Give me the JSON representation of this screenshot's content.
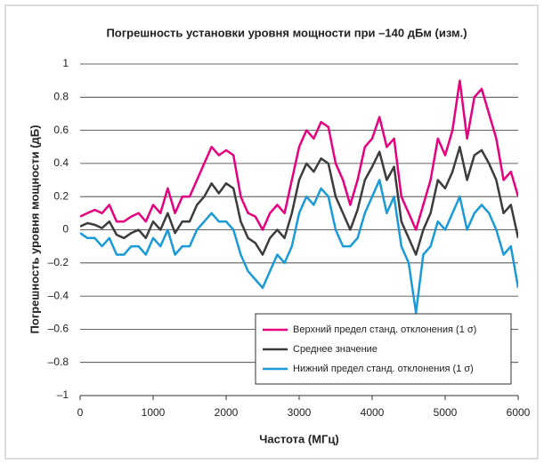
{
  "chart_data": {
    "type": "line",
    "title": "Погрешность установки уровня мощности при –140 дБм (изм.)",
    "x_label": "Частота (МГц)",
    "y_label": "Погрешность уровня мощности (дБ)",
    "x": [
      0,
      100,
      200,
      300,
      400,
      500,
      600,
      700,
      800,
      900,
      1000,
      1100,
      1200,
      1300,
      1400,
      1500,
      1600,
      1700,
      1800,
      1900,
      2000,
      2100,
      2200,
      2300,
      2400,
      2500,
      2600,
      2700,
      2800,
      2900,
      3000,
      3100,
      3200,
      3300,
      3400,
      3500,
      3600,
      3700,
      3800,
      3900,
      4000,
      4100,
      4200,
      4300,
      4400,
      4500,
      4600,
      4700,
      4800,
      4900,
      5000,
      5100,
      5200,
      5300,
      5400,
      5500,
      5600,
      5700,
      5800,
      5900,
      6000
    ],
    "series": [
      {
        "name": "Верхний предел станд. отклонения (1 σ)",
        "color": "#e6007e",
        "values": [
          0.08,
          0.1,
          0.12,
          0.1,
          0.15,
          0.05,
          0.05,
          0.08,
          0.1,
          0.05,
          0.15,
          0.1,
          0.25,
          0.1,
          0.2,
          0.2,
          0.3,
          0.4,
          0.5,
          0.45,
          0.48,
          0.45,
          0.2,
          0.1,
          0.08,
          0.0,
          0.1,
          0.15,
          0.1,
          0.3,
          0.5,
          0.6,
          0.55,
          0.65,
          0.62,
          0.4,
          0.3,
          0.15,
          0.3,
          0.5,
          0.55,
          0.68,
          0.5,
          0.55,
          0.2,
          0.1,
          0.0,
          0.15,
          0.3,
          0.55,
          0.45,
          0.6,
          0.9,
          0.55,
          0.8,
          0.85,
          0.7,
          0.55,
          0.3,
          0.35,
          0.2
        ]
      },
      {
        "name": "Среднее значение",
        "color": "#3c3c3c",
        "values": [
          0.02,
          0.04,
          0.03,
          0.01,
          0.05,
          -0.03,
          -0.05,
          -0.02,
          0.0,
          -0.05,
          0.05,
          0.0,
          0.1,
          -0.02,
          0.05,
          0.05,
          0.15,
          0.2,
          0.28,
          0.22,
          0.28,
          0.25,
          0.05,
          -0.05,
          -0.08,
          -0.15,
          -0.05,
          0.0,
          -0.05,
          0.1,
          0.3,
          0.4,
          0.35,
          0.43,
          0.4,
          0.2,
          0.1,
          0.0,
          0.12,
          0.3,
          0.38,
          0.47,
          0.3,
          0.38,
          0.05,
          -0.05,
          -0.15,
          0.0,
          0.1,
          0.3,
          0.25,
          0.35,
          0.5,
          0.3,
          0.45,
          0.48,
          0.4,
          0.3,
          0.1,
          0.15,
          -0.05
        ]
      },
      {
        "name": "Нижний предел станд. отклонения (1 σ)",
        "color": "#1a9ad6",
        "values": [
          -0.02,
          -0.05,
          -0.05,
          -0.1,
          -0.05,
          -0.15,
          -0.15,
          -0.1,
          -0.1,
          -0.15,
          -0.05,
          -0.1,
          0.0,
          -0.15,
          -0.1,
          -0.1,
          0.0,
          0.05,
          0.1,
          0.05,
          0.05,
          0.0,
          -0.15,
          -0.25,
          -0.3,
          -0.35,
          -0.25,
          -0.15,
          -0.2,
          -0.1,
          0.1,
          0.2,
          0.15,
          0.25,
          0.2,
          0.0,
          -0.1,
          -0.1,
          -0.05,
          0.1,
          0.2,
          0.3,
          0.1,
          0.2,
          -0.1,
          -0.2,
          -0.5,
          -0.15,
          -0.1,
          0.05,
          0.0,
          0.1,
          0.2,
          0.0,
          0.1,
          0.15,
          0.1,
          0.0,
          -0.15,
          -0.1,
          -0.35
        ]
      }
    ],
    "xlim": [
      0,
      6000
    ],
    "xticks": [
      0,
      1000,
      2000,
      3000,
      4000,
      5000,
      6000
    ],
    "ylim": [
      -1,
      1
    ],
    "yticks": [
      {
        "value": -1,
        "label": "–1"
      },
      {
        "value": -0.8,
        "label": "–0.8"
      },
      {
        "value": -0.6,
        "label": "–0.6"
      },
      {
        "value": -0.4,
        "label": "–0.4"
      },
      {
        "value": -0.2,
        "label": "–0.2"
      },
      0,
      0.2,
      0.4,
      0.6,
      0.8,
      1
    ],
    "grid": true,
    "legend": "lower right"
  }
}
